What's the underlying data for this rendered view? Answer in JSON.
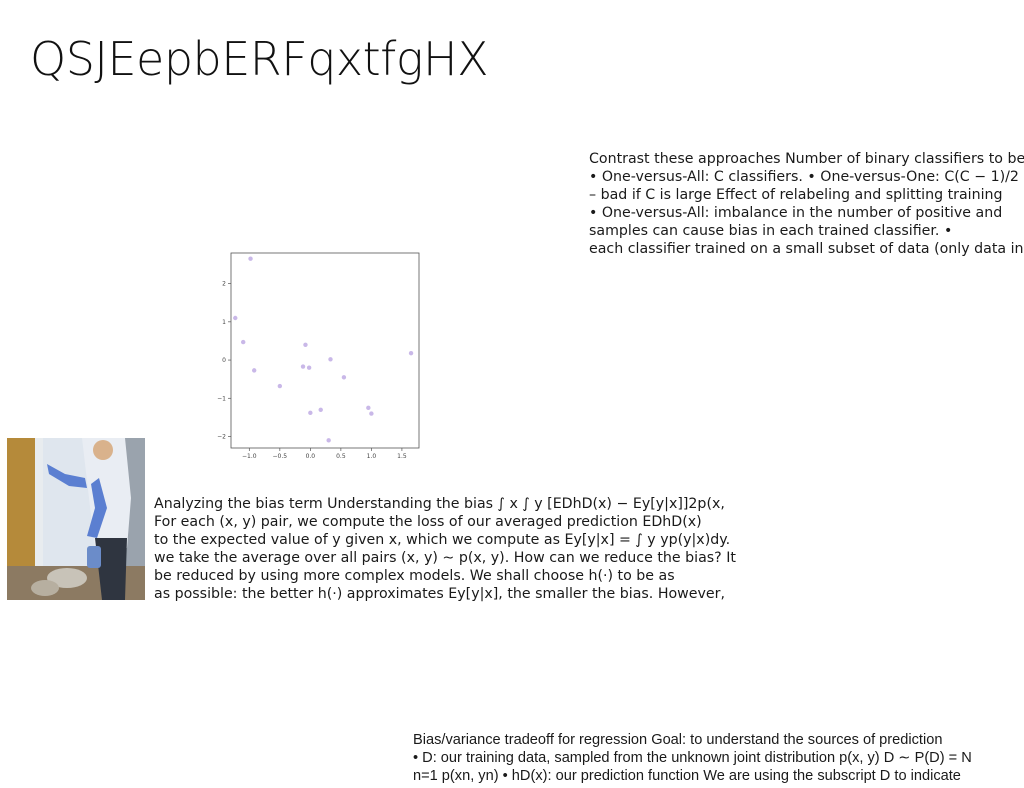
{
  "slide": {
    "title": "QSJEepbERFqxtfgHX",
    "paragraph_1": [
      "Contrast these approaches Number of binary classifiers to be",
      "• One-versus-All: C classifiers. • One-versus-One: C(C − 1)/2",
      "– bad if C is large Effect of relabeling and splitting training",
      "• One-versus-All: imbalance in the number of positive and",
      "samples can cause bias in each trained classifier. •",
      "each classifier trained on a small subset of data (only data in"
    ],
    "paragraph_2": [
      "Analyzing the bias term Understanding the bias ∫ x ∫ y [EDhD(x) − Ey[y|x]]2p(x,",
      "For each (x, y) pair, we compute the loss of our averaged prediction EDhD(x)",
      "to the expected value of y given x, which we compute as Ey[y|x] = ∫ y yp(y|x)dy.",
      "we take the average over all pairs (x, y) ∼ p(x, y). How can we reduce the bias? It",
      "be reduced by using more complex models. We shall choose h(·) to be as",
      "as possible: the better h(·) approximates Ey[y|x], the smaller the bias. However,"
    ],
    "paragraph_3": [
      "Bias/variance tradeoff for regression Goal: to understand the sources of prediction",
      "• D: our training data, sampled from the unknown joint distribution p(x, y) D ∼ P(D) = N",
      "n=1 p(xn, yn) • hD(x): our prediction function We are using the subscript D to indicate"
    ]
  },
  "chart_data": {
    "type": "scatter",
    "title": "",
    "xlabel": "",
    "ylabel": "",
    "xlim": [
      -1.3,
      1.78
    ],
    "ylim": [
      -2.3,
      2.8
    ],
    "xticks": [
      "−1.0",
      "−0.5",
      "0.0",
      "0.5",
      "1.0",
      "1.5"
    ],
    "xtick_values": [
      -1.0,
      -0.5,
      0.0,
      0.5,
      1.0,
      1.5
    ],
    "yticks": [
      "2",
      "1",
      "0",
      "−1",
      "−2"
    ],
    "ytick_values": [
      2,
      1,
      0,
      -1,
      -2
    ],
    "grid": false,
    "marker_color": "#c9b8e8",
    "points": [
      {
        "x": -0.98,
        "y": 2.65
      },
      {
        "x": -1.23,
        "y": 1.1
      },
      {
        "x": -1.1,
        "y": 0.47
      },
      {
        "x": -0.92,
        "y": -0.27
      },
      {
        "x": -0.5,
        "y": -0.68
      },
      {
        "x": -0.12,
        "y": -0.17
      },
      {
        "x": -0.08,
        "y": 0.4
      },
      {
        "x": -0.02,
        "y": -0.2
      },
      {
        "x": 0.33,
        "y": 0.02
      },
      {
        "x": 0.55,
        "y": -0.45
      },
      {
        "x": 0.17,
        "y": -1.3
      },
      {
        "x": 0.0,
        "y": -1.38
      },
      {
        "x": 0.3,
        "y": -2.1
      },
      {
        "x": 0.95,
        "y": -1.25
      },
      {
        "x": 1.0,
        "y": -1.4
      },
      {
        "x": 1.65,
        "y": 0.18
      }
    ]
  },
  "photo": {
    "description_icon": "person-cleaning-photo",
    "colors": {
      "wall": "#b58a3a",
      "sky": "#dfe6ee",
      "glove": "#5b7fd1",
      "shirt": "#e9edf3"
    }
  }
}
